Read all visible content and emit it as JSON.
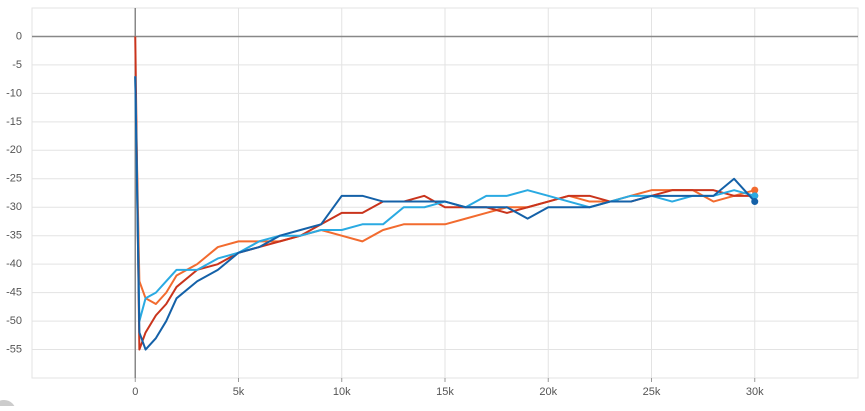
{
  "chart_data": {
    "type": "line",
    "x": [
      0,
      200,
      500,
      1000,
      1500,
      2000,
      3000,
      4000,
      5000,
      6000,
      7000,
      8000,
      9000,
      10000,
      11000,
      12000,
      13000,
      14000,
      15000,
      16000,
      17000,
      18000,
      19000,
      20000,
      21000,
      22000,
      23000,
      24000,
      25000,
      26000,
      27000,
      28000,
      29000,
      30000
    ],
    "series": [
      {
        "color": "#f26b2f",
        "values": [
          -7,
          -43,
          -46,
          -47,
          -45,
          -42,
          -40,
          -37,
          -36,
          -36,
          -36,
          -35,
          -34,
          -35,
          -36,
          -34,
          -33,
          -33,
          -33,
          -32,
          -31,
          -30,
          -30,
          -29,
          -28,
          -29,
          -29,
          -28,
          -27,
          -27,
          -27,
          -29,
          -28,
          -27
        ]
      },
      {
        "color": "#c9341c",
        "values": [
          0,
          -55,
          -52,
          -49,
          -47,
          -44,
          -41,
          -40,
          -38,
          -37,
          -36,
          -35,
          -33,
          -31,
          -31,
          -29,
          -29,
          -28,
          -30,
          -30,
          -30,
          -31,
          -30,
          -29,
          -28,
          -28,
          -29,
          -29,
          -28,
          -27,
          -27,
          -27,
          -28,
          -28
        ]
      },
      {
        "color": "#2aaae2",
        "values": [
          -7,
          -50,
          -46,
          -45,
          -43,
          -41,
          -41,
          -39,
          -38,
          -36,
          -35,
          -35,
          -34,
          -34,
          -33,
          -33,
          -30,
          -30,
          -29,
          -30,
          -28,
          -28,
          -27,
          -28,
          -29,
          -30,
          -29,
          -28,
          -28,
          -29,
          -28,
          -28,
          -27,
          -28
        ]
      },
      {
        "color": "#1461a8",
        "values": [
          -7,
          -52,
          -55,
          -53,
          -50,
          -46,
          -43,
          -41,
          -38,
          -37,
          -35,
          -34,
          -33,
          -28,
          -28,
          -29,
          -29,
          -29,
          -29,
          -30,
          -30,
          -30,
          -32,
          -30,
          -30,
          -30,
          -29,
          -29,
          -28,
          -28,
          -28,
          -28,
          -25,
          -29
        ]
      }
    ],
    "xlim": [
      -5000,
      35000
    ],
    "ylim": [
      -60,
      5
    ],
    "xticks": [
      {
        "value": 0,
        "label": "0"
      },
      {
        "value": 5000,
        "label": "5k"
      },
      {
        "value": 10000,
        "label": "10k"
      },
      {
        "value": 15000,
        "label": "15k"
      },
      {
        "value": 20000,
        "label": "20k"
      },
      {
        "value": 25000,
        "label": "25k"
      },
      {
        "value": 30000,
        "label": "30k"
      }
    ],
    "yticks": [
      0,
      -5,
      -10,
      -15,
      -20,
      -25,
      -30,
      -35,
      -40,
      -45,
      -50,
      -55
    ],
    "grid": true
  }
}
